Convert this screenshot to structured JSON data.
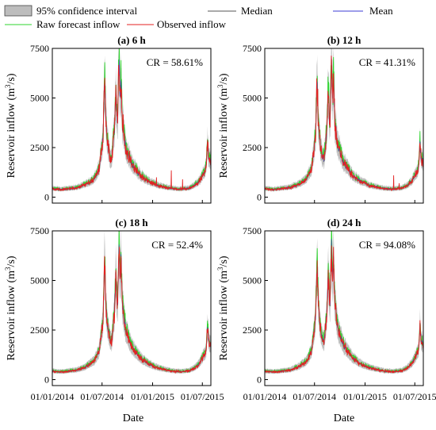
{
  "legend": {
    "items": [
      {
        "key": "ci",
        "label": "95% confidence interval",
        "color": "#b4b4b4",
        "kind": "box"
      },
      {
        "key": "median",
        "label": "Median",
        "color": "#555555",
        "kind": "line"
      },
      {
        "key": "mean",
        "label": "Mean",
        "color": "#3b3bd6",
        "kind": "line"
      },
      {
        "key": "raw",
        "label": "Raw forecast inflow",
        "color": "#2fd52f",
        "kind": "line"
      },
      {
        "key": "obs",
        "label": "Observed inflow",
        "color": "#e32222",
        "kind": "line"
      }
    ]
  },
  "xlabel": "Date",
  "ylabel_prefix": "Reservoir inflow (m",
  "ylabel_sup": "3",
  "ylabel_suffix": "/s)",
  "chart_data": [
    {
      "type": "line",
      "title": "(a) 6 h",
      "annotation": "CR = 58.61%",
      "x_range": [
        "2014-01-01",
        "2015-08-01"
      ],
      "x_ticks": [
        "01/01/2014",
        "01/07/2014",
        "01/01/2015",
        "01/07/2015"
      ],
      "ylim": [
        -300,
        7500
      ],
      "y_ticks": [
        0,
        2500,
        5000,
        7500
      ],
      "spike_scale": 1.0,
      "noise_scale": 1.0,
      "show_xticklabels": false,
      "observed_spikes": [
        {
          "x": "2015-01-15",
          "y": 1000
        },
        {
          "x": "2015-03-10",
          "y": 1350
        },
        {
          "x": "2015-04-20",
          "y": 900
        }
      ]
    },
    {
      "type": "line",
      "title": "(b) 12 h",
      "annotation": "CR = 41.31%",
      "x_range": [
        "2014-01-01",
        "2015-08-01"
      ],
      "x_ticks": [
        "01/01/2014",
        "01/07/2014",
        "01/01/2015",
        "01/07/2015"
      ],
      "ylim": [
        -300,
        7500
      ],
      "y_ticks": [
        0,
        2500,
        5000,
        7500
      ],
      "spike_scale": 1.0,
      "noise_scale": 0.9,
      "show_xticklabels": false,
      "observed_spikes": [
        {
          "x": "2015-04-15",
          "y": 1100
        },
        {
          "x": "2015-05-05",
          "y": 700
        }
      ]
    },
    {
      "type": "line",
      "title": "(c) 18 h",
      "annotation": "CR = 52.4%",
      "x_range": [
        "2014-01-01",
        "2015-08-01"
      ],
      "x_ticks": [
        "01/01/2014",
        "01/07/2014",
        "01/01/2015",
        "01/07/2015"
      ],
      "ylim": [
        -300,
        7500
      ],
      "y_ticks": [
        0,
        2500,
        5000,
        7500
      ],
      "spike_scale": 1.0,
      "noise_scale": 0.6,
      "show_xticklabels": true,
      "observed_spikes": []
    },
    {
      "type": "line",
      "title": "(d) 24 h",
      "annotation": "CR = 94.08%",
      "x_range": [
        "2014-01-01",
        "2015-08-01"
      ],
      "x_ticks": [
        "01/01/2014",
        "01/07/2014",
        "01/01/2015",
        "01/07/2015"
      ],
      "ylim": [
        -300,
        7500
      ],
      "y_ticks": [
        0,
        2500,
        5000,
        7500
      ],
      "spike_scale": 1.0,
      "noise_scale": 0.7,
      "show_xticklabels": true,
      "observed_spikes": []
    }
  ],
  "base_hydrograph": [
    {
      "x": "2014-01-01",
      "y": 420
    },
    {
      "x": "2014-02-01",
      "y": 380
    },
    {
      "x": "2014-03-01",
      "y": 420
    },
    {
      "x": "2014-04-01",
      "y": 470
    },
    {
      "x": "2014-05-01",
      "y": 620
    },
    {
      "x": "2014-06-01",
      "y": 900
    },
    {
      "x": "2014-06-20",
      "y": 1400
    },
    {
      "x": "2014-07-05",
      "y": 3000
    },
    {
      "x": "2014-07-12",
      "y": 4300
    },
    {
      "x": "2014-07-20",
      "y": 2800
    },
    {
      "x": "2014-07-28",
      "y": 2100
    },
    {
      "x": "2014-08-05",
      "y": 1900
    },
    {
      "x": "2014-08-15",
      "y": 3300
    },
    {
      "x": "2014-08-25",
      "y": 3900
    },
    {
      "x": "2014-09-05",
      "y": 4100
    },
    {
      "x": "2014-09-15",
      "y": 3600
    },
    {
      "x": "2014-09-25",
      "y": 2500
    },
    {
      "x": "2014-10-15",
      "y": 1700
    },
    {
      "x": "2014-11-15",
      "y": 1100
    },
    {
      "x": "2014-12-15",
      "y": 800
    },
    {
      "x": "2015-01-15",
      "y": 600
    },
    {
      "x": "2015-02-15",
      "y": 490
    },
    {
      "x": "2015-03-15",
      "y": 420
    },
    {
      "x": "2015-04-15",
      "y": 400
    },
    {
      "x": "2015-05-15",
      "y": 450
    },
    {
      "x": "2015-06-01",
      "y": 560
    },
    {
      "x": "2015-06-20",
      "y": 800
    },
    {
      "x": "2015-07-10",
      "y": 1300
    },
    {
      "x": "2015-07-25",
      "y": 1900
    },
    {
      "x": "2015-08-01",
      "y": 1700
    }
  ],
  "peaks": [
    {
      "x": "2014-07-10",
      "y": 5800
    },
    {
      "x": "2014-08-20",
      "y": 5200
    },
    {
      "x": "2014-09-01",
      "y": 6900
    },
    {
      "x": "2014-09-08",
      "y": 6100
    },
    {
      "x": "2015-07-20",
      "y": 2700
    }
  ]
}
